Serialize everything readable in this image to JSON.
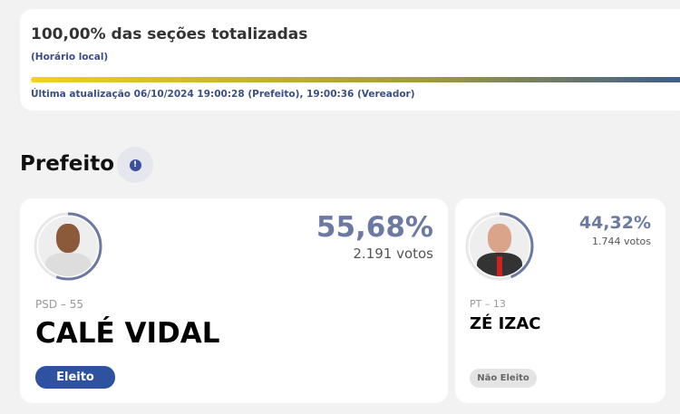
{
  "progress": {
    "title": "100,00% das seções totalizadas",
    "subtitle": "(Horário local)",
    "percent": 100,
    "last_update": "Última atualização 06/10/2024 19:00:28 (Prefeito), 19:00:36 (Vereador)"
  },
  "section": {
    "title": "Prefeito",
    "info_icon": "!"
  },
  "candidates": [
    {
      "pct": "55,68%",
      "votes": "2.191 votos",
      "party": "PSD – 55",
      "name": "CALÉ VIDAL",
      "status": "Eleito",
      "share": 55.68
    },
    {
      "pct": "44,32%",
      "votes": "1.744 votos",
      "party": "PT – 13",
      "name": "ZÉ IZAC",
      "status": "Não Eleito",
      "share": 44.32
    }
  ]
}
